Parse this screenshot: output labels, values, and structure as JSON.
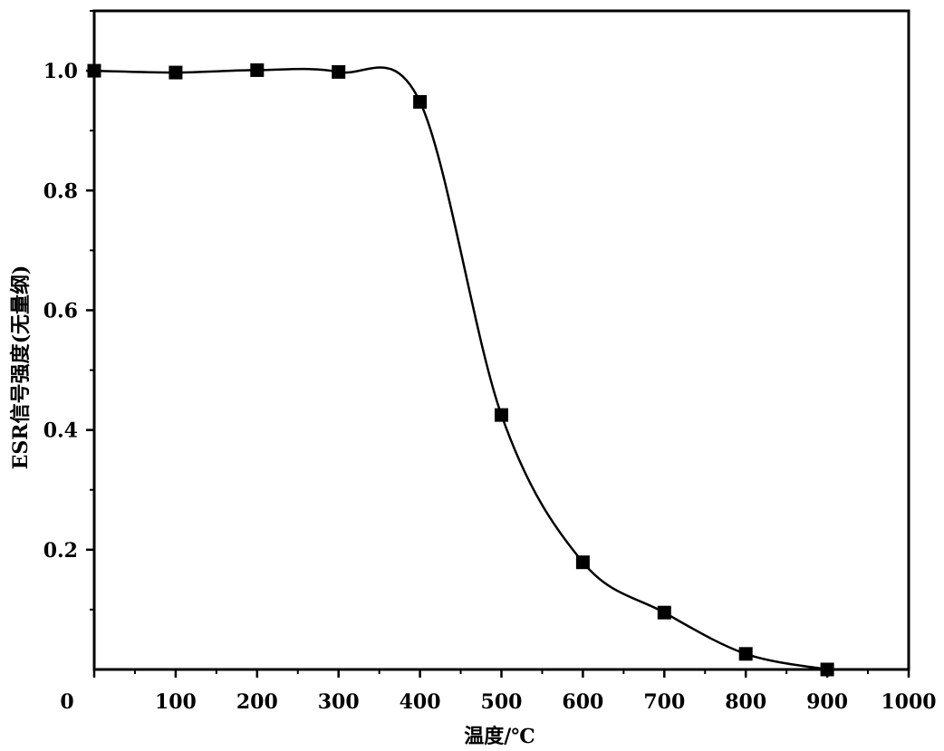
{
  "chart_data": {
    "type": "line",
    "title": "",
    "xlabel": "温度/℃",
    "ylabel": "ESR信号强度(无量纲)",
    "xlim": [
      0,
      1000
    ],
    "ylim": [
      0,
      1.1
    ],
    "x_ticks": [
      0,
      100,
      200,
      300,
      400,
      500,
      600,
      700,
      800,
      900,
      1000
    ],
    "x_tick_labels": [
      "0",
      "100",
      "200",
      "300",
      "400",
      "500",
      "600",
      "700",
      "800",
      "900",
      "1000"
    ],
    "y_ticks": [
      0.2,
      0.4,
      0.6,
      0.8,
      1.0
    ],
    "y_tick_labels": [
      "0.2",
      "0.4",
      "0.6",
      "0.8",
      "1.0"
    ],
    "grid": false,
    "legend": "none",
    "marker": "square",
    "color": "#000000",
    "series": [
      {
        "x": [
          0,
          100,
          200,
          300,
          400,
          500,
          600,
          700,
          800,
          900
        ],
        "y": [
          1.0,
          0.997,
          1.001,
          0.998,
          0.948,
          0.425,
          0.179,
          0.095,
          0.026,
          0.0
        ]
      }
    ]
  }
}
